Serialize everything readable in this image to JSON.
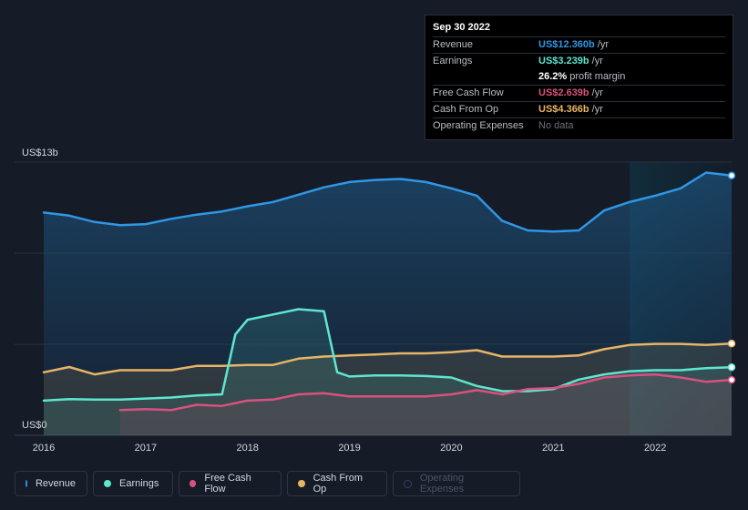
{
  "tooltip": {
    "date": "Sep 30 2022",
    "revenue_label": "Revenue",
    "revenue_value": "US$12.360b",
    "revenue_unit": "/yr",
    "earnings_label": "Earnings",
    "earnings_value": "US$3.239b",
    "earnings_unit": "/yr",
    "margin_value": "26.2%",
    "margin_label": "profit margin",
    "fcf_label": "Free Cash Flow",
    "fcf_value": "US$2.639b",
    "fcf_unit": "/yr",
    "cfo_label": "Cash From Op",
    "cfo_value": "US$4.366b",
    "cfo_unit": "/yr",
    "opex_label": "Operating Expenses",
    "opex_value": "No data"
  },
  "legend": {
    "revenue": "Revenue",
    "earnings": "Earnings",
    "fcf": "Free Cash Flow",
    "cfo": "Cash From Op",
    "opex": "Operating Expenses"
  },
  "colors": {
    "revenue": "#2f97e6",
    "earnings": "#5ee6cf",
    "fcf": "#d9517f",
    "cfo": "#e8b466",
    "opex": "#3b3f64"
  },
  "chart_data": {
    "type": "area",
    "ylabel_top": "US$13b",
    "ylabel_bottom": "US$0",
    "ylim": [
      0,
      13
    ],
    "x_ticks": [
      "2016",
      "2017",
      "2018",
      "2019",
      "2020",
      "2021",
      "2022"
    ],
    "xlim": [
      2016.0,
      2022.75
    ],
    "series": [
      {
        "name": "Revenue",
        "key": "revenue",
        "x": [
          2016.0,
          2016.25,
          2016.5,
          2016.75,
          2017.0,
          2017.25,
          2017.5,
          2017.75,
          2018.0,
          2018.25,
          2018.5,
          2018.75,
          2019.0,
          2019.25,
          2019.5,
          2019.75,
          2020.0,
          2020.25,
          2020.5,
          2020.75,
          2021.0,
          2021.25,
          2021.5,
          2021.75,
          2022.0,
          2022.25,
          2022.5,
          2022.75
        ],
        "y": [
          10.6,
          10.45,
          10.15,
          10.0,
          10.05,
          10.3,
          10.5,
          10.65,
          10.9,
          11.1,
          11.45,
          11.8,
          12.05,
          12.15,
          12.2,
          12.05,
          11.75,
          11.4,
          10.2,
          9.75,
          9.7,
          9.75,
          10.7,
          11.1,
          11.4,
          11.75,
          12.5,
          12.36
        ]
      },
      {
        "name": "Earnings",
        "key": "earnings",
        "x": [
          2016.0,
          2016.25,
          2016.5,
          2016.75,
          2017.0,
          2017.25,
          2017.5,
          2017.75,
          2017.88,
          2018.0,
          2018.25,
          2018.5,
          2018.75,
          2018.88,
          2019.0,
          2019.25,
          2019.5,
          2019.75,
          2020.0,
          2020.25,
          2020.5,
          2020.75,
          2021.0,
          2021.25,
          2021.5,
          2021.75,
          2022.0,
          2022.25,
          2022.5,
          2022.75
        ],
        "y": [
          1.65,
          1.72,
          1.7,
          1.7,
          1.75,
          1.8,
          1.9,
          1.95,
          4.8,
          5.5,
          5.75,
          6.0,
          5.9,
          3.0,
          2.8,
          2.85,
          2.85,
          2.82,
          2.75,
          2.35,
          2.1,
          2.1,
          2.2,
          2.65,
          2.9,
          3.05,
          3.1,
          3.1,
          3.2,
          3.239
        ]
      },
      {
        "name": "Free Cash Flow",
        "key": "fcf",
        "x": [
          2016.75,
          2017.0,
          2017.25,
          2017.5,
          2017.75,
          2018.0,
          2018.25,
          2018.5,
          2018.75,
          2019.0,
          2019.25,
          2019.5,
          2019.75,
          2020.0,
          2020.25,
          2020.5,
          2020.75,
          2021.0,
          2021.25,
          2021.5,
          2021.75,
          2022.0,
          2022.25,
          2022.5,
          2022.75
        ],
        "y": [
          1.2,
          1.25,
          1.2,
          1.45,
          1.4,
          1.65,
          1.7,
          1.95,
          2.0,
          1.85,
          1.85,
          1.85,
          1.85,
          1.95,
          2.15,
          1.95,
          2.2,
          2.25,
          2.45,
          2.75,
          2.85,
          2.9,
          2.75,
          2.55,
          2.639
        ]
      },
      {
        "name": "Cash From Op",
        "key": "cfo",
        "x": [
          2016.0,
          2016.25,
          2016.5,
          2016.75,
          2017.0,
          2017.25,
          2017.5,
          2017.75,
          2018.0,
          2018.25,
          2018.5,
          2018.75,
          2019.0,
          2019.25,
          2019.5,
          2019.75,
          2020.0,
          2020.25,
          2020.5,
          2020.75,
          2021.0,
          2021.25,
          2021.5,
          2021.75,
          2022.0,
          2022.25,
          2022.5,
          2022.75
        ],
        "y": [
          3.0,
          3.25,
          2.9,
          3.1,
          3.1,
          3.1,
          3.3,
          3.3,
          3.35,
          3.35,
          3.65,
          3.75,
          3.8,
          3.85,
          3.9,
          3.9,
          3.95,
          4.05,
          3.75,
          3.75,
          3.75,
          3.8,
          4.1,
          4.3,
          4.35,
          4.35,
          4.3,
          4.366
        ]
      }
    ],
    "legend_position": "bottom-left"
  }
}
